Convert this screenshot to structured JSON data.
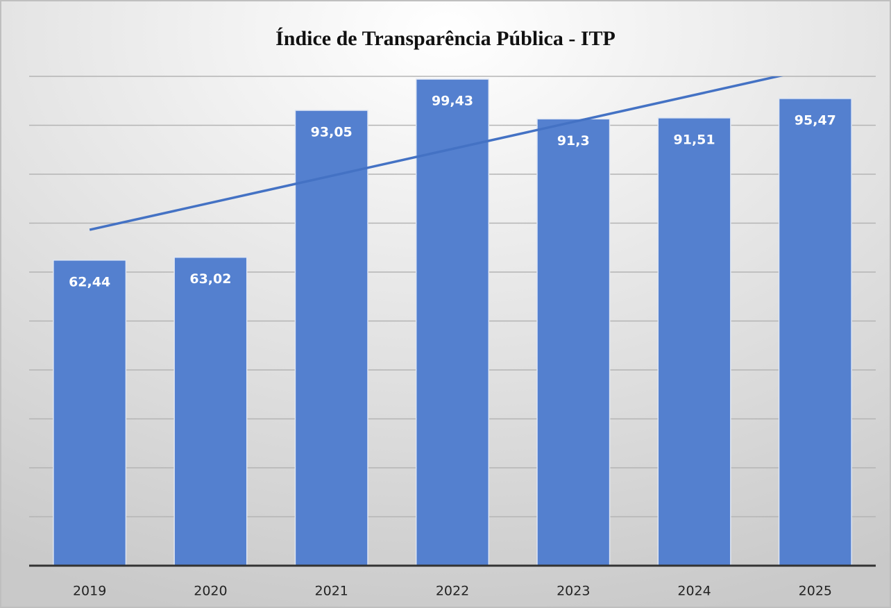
{
  "chart_data": {
    "type": "bar",
    "title": "Índice de Transparência Pública - ITP",
    "categories": [
      "2019",
      "2020",
      "2021",
      "2022",
      "2023",
      "2024",
      "2025"
    ],
    "values": [
      62.44,
      63.02,
      93.05,
      99.43,
      91.3,
      91.51,
      95.47
    ],
    "value_labels": [
      "62,44",
      "63,02",
      "93,05",
      "99,43",
      "91,3",
      "91,51",
      "95,47"
    ],
    "color": "#5480cf",
    "ylim": [
      0,
      100
    ],
    "yticks": [
      0,
      10,
      20,
      30,
      40,
      50,
      60,
      70,
      80,
      90,
      100
    ],
    "grid": true,
    "trendline": {
      "type": "linear",
      "color": "#4472c4"
    }
  }
}
